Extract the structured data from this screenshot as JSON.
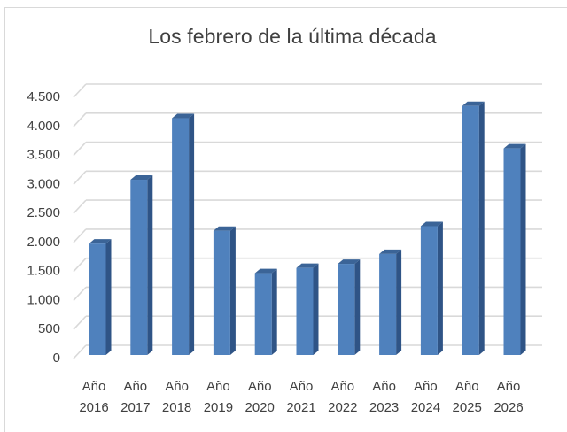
{
  "chart_data": {
    "type": "bar",
    "style": "3d-column",
    "title": "Los febrero de la última década",
    "xlabel": "",
    "ylabel": "",
    "categories": [
      "Año 2016",
      "Año 2017",
      "Año 2018",
      "Año 2019",
      "Año 2020",
      "Año 2021",
      "Año 2022",
      "Año 2023",
      "Año 2024",
      "Año 2025",
      "Año 2026"
    ],
    "category_lines": [
      [
        "Año",
        "2016"
      ],
      [
        "Año",
        "2017"
      ],
      [
        "Año",
        "2018"
      ],
      [
        "Año",
        "2019"
      ],
      [
        "Año",
        "2020"
      ],
      [
        "Año",
        "2021"
      ],
      [
        "Año",
        "2022"
      ],
      [
        "Año",
        "2023"
      ],
      [
        "Año",
        "2024"
      ],
      [
        "Año",
        "2025"
      ],
      [
        "Año",
        "2026"
      ]
    ],
    "values": [
      1920,
      3020,
      4080,
      2140,
      1410,
      1500,
      1570,
      1740,
      2220,
      4290,
      3560
    ],
    "ylim": [
      0,
      4500
    ],
    "yticks": [
      0,
      500,
      1000,
      1500,
      2000,
      2500,
      3000,
      3500,
      4000,
      4500
    ],
    "ytick_labels": [
      "0",
      "500",
      "1.000",
      "1.500",
      "2.000",
      "2.500",
      "3.000",
      "3.500",
      "4.000",
      "4.500"
    ],
    "grid": true,
    "legend": null
  },
  "colors": {
    "bar_front": "#4f81bd",
    "bar_side": "#2f5486",
    "bar_top": "#3b6497",
    "gridline": "#d9d9d9",
    "text": "#404040"
  }
}
